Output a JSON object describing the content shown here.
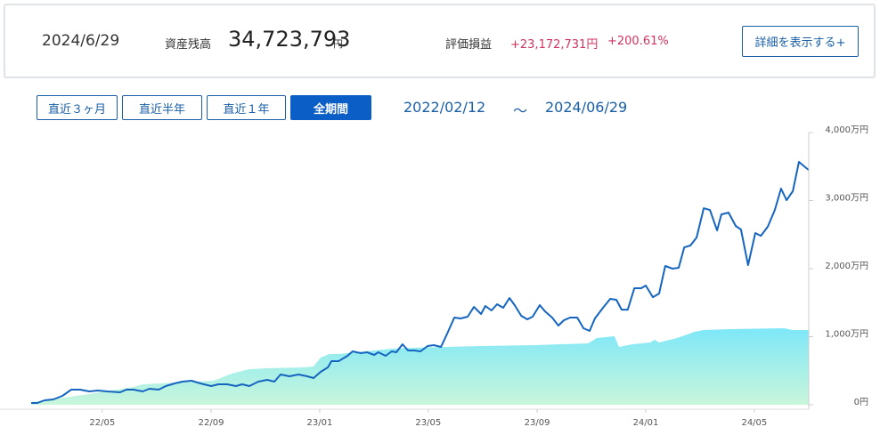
{
  "summary": {
    "date": "2024/6/29",
    "balance_label": "資産残高",
    "balance": "34,723,793",
    "balance_unit": "円",
    "pl_label": "評価損益",
    "pl_amount": "+23,172,731円",
    "pl_percent": "+200.61%",
    "detail_button": "詳細を表示する+"
  },
  "period": {
    "buttons": [
      "直近３ヶ月",
      "直近半年",
      "直近１年",
      "全期間"
    ],
    "active": 3,
    "from": "2022/02/12",
    "separator": "～",
    "to": "2024/06/29"
  },
  "chart_data": {
    "type": "line",
    "xlim": [
      2022.115,
      2024.5
    ],
    "xticks": [
      {
        "value": 2022.333,
        "label": "22/05"
      },
      {
        "value": 2022.667,
        "label": "22/09"
      },
      {
        "value": 2023.0,
        "label": "23/01"
      },
      {
        "value": 2023.333,
        "label": "23/05"
      },
      {
        "value": 2023.667,
        "label": "23/09"
      },
      {
        "value": 2024.0,
        "label": "24/01"
      },
      {
        "value": 2024.333,
        "label": "24/05"
      }
    ],
    "ylim": [
      0,
      4000
    ],
    "yticks": [
      {
        "value": 0,
        "label": "0円"
      },
      {
        "value": 1000,
        "label": "1,000万円"
      },
      {
        "value": 2000,
        "label": "2,000万円"
      },
      {
        "value": 3000,
        "label": "3,000万円"
      },
      {
        "value": 4000,
        "label": "4,000万円"
      }
    ],
    "series": [
      {
        "kind": "area",
        "colors": [
          "#7ee7f8",
          "#c9f6db"
        ],
        "x": [
          2022.115,
          2022.293,
          2022.429,
          2022.457,
          2022.566,
          2022.675,
          2022.73,
          2022.784,
          2022.839,
          2022.948,
          2022.981,
          2023.003,
          2023.03,
          2023.058,
          2023.112,
          2023.221,
          2023.276,
          2023.385,
          2023.495,
          2023.659,
          2023.823,
          2023.85,
          2023.904,
          2023.918,
          2023.959,
          2024.014,
          2024.027,
          2024.041,
          2024.096,
          2024.15,
          2024.178,
          2024.26,
          2024.424,
          2024.451,
          2024.5
        ],
        "values": [
          39,
          157,
          261,
          301,
          327,
          353,
          457,
          523,
          536,
          549,
          562,
          693,
          745,
          745,
          771,
          823,
          836,
          850,
          863,
          876,
          902,
          980,
          1006,
          850,
          889,
          915,
          954,
          915,
          980,
          1072,
          1098,
          1111,
          1124,
          1098,
          1098
        ]
      },
      {
        "kind": "line",
        "color": "#1565c0",
        "x": [
          2022.115,
          2022.134,
          2022.156,
          2022.183,
          2022.211,
          2022.238,
          2022.265,
          2022.293,
          2022.32,
          2022.347,
          2022.388,
          2022.407,
          2022.429,
          2022.457,
          2022.478,
          2022.506,
          2022.528,
          2022.555,
          2022.579,
          2022.607,
          2022.634,
          2022.667,
          2022.689,
          2022.716,
          2022.743,
          2022.762,
          2022.784,
          2022.812,
          2022.839,
          2022.861,
          2022.88,
          2022.907,
          2022.935,
          2022.962,
          2022.981,
          2023.003,
          2023.025,
          2023.036,
          2023.058,
          2023.085,
          2023.101,
          2023.126,
          2023.145,
          2023.167,
          2023.18,
          2023.202,
          2023.221,
          2023.235,
          2023.254,
          2023.271,
          2023.29,
          2023.309,
          2023.331,
          2023.35,
          2023.372,
          2023.391,
          2023.413,
          2023.432,
          2023.454,
          2023.473,
          2023.495,
          2023.508,
          2023.527,
          2023.544,
          2023.563,
          2023.582,
          2023.598,
          2023.618,
          2023.637,
          2023.653,
          2023.675,
          2023.691,
          2023.713,
          2023.732,
          2023.749,
          2023.768,
          2023.79,
          2023.809,
          2023.828,
          2023.844,
          2023.869,
          2023.891,
          2023.91,
          2023.926,
          2023.945,
          2023.965,
          2023.986,
          2024.0,
          2024.022,
          2024.041,
          2024.06,
          2024.082,
          2024.101,
          2024.118,
          2024.137,
          2024.156,
          2024.178,
          2024.197,
          2024.219,
          2024.232,
          2024.254,
          2024.276,
          2024.292,
          2024.314,
          2024.336,
          2024.353,
          2024.374,
          2024.396,
          2024.415,
          2024.432,
          2024.451,
          2024.47,
          2024.486,
          2024.5
        ],
        "values": [
          26,
          26,
          65,
          78,
          131,
          222,
          222,
          196,
          209,
          196,
          183,
          222,
          222,
          196,
          235,
          222,
          274,
          314,
          340,
          353,
          314,
          274,
          301,
          301,
          274,
          301,
          274,
          340,
          366,
          340,
          444,
          418,
          444,
          418,
          392,
          484,
          549,
          640,
          640,
          719,
          784,
          758,
          771,
          732,
          771,
          719,
          784,
          771,
          889,
          797,
          797,
          784,
          863,
          876,
          850,
          1046,
          1281,
          1268,
          1294,
          1438,
          1333,
          1451,
          1386,
          1477,
          1425,
          1568,
          1464,
          1307,
          1255,
          1294,
          1464,
          1372,
          1281,
          1163,
          1242,
          1281,
          1281,
          1124,
          1085,
          1268,
          1425,
          1555,
          1542,
          1398,
          1398,
          1712,
          1712,
          1751,
          1581,
          1634,
          2039,
          2000,
          2013,
          2313,
          2340,
          2457,
          2888,
          2862,
          2562,
          2797,
          2823,
          2627,
          2575,
          2052,
          2523,
          2483,
          2614,
          2862,
          3176,
          3006,
          3137,
          3568,
          3503,
          3450
        ]
      }
    ]
  }
}
